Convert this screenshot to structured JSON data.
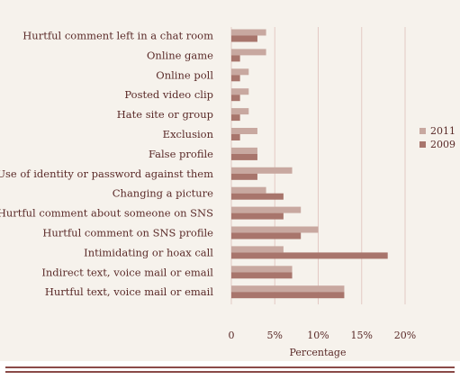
{
  "colors": {
    "series_2011": "#c8a8a0",
    "series_2009": "#a8756c",
    "grid": "#e3c9c4",
    "text": "#5a2a28",
    "panel": "#f6f2ec",
    "rule": "#8a4a48"
  },
  "chart_data": {
    "type": "bar",
    "orientation": "horizontal",
    "title": "",
    "xlabel": "Percentage",
    "ylabel": "",
    "xlim": [
      0,
      20
    ],
    "xticks": [
      0,
      5,
      10,
      15,
      20
    ],
    "xtick_labels": [
      "0",
      "5%",
      "10%",
      "15%",
      "20%"
    ],
    "grid": "vertical",
    "legend_position": "right",
    "categories": [
      "Hurtful comment left in a chat room",
      "Online game",
      "Online poll",
      "Posted video clip",
      "Hate site or group",
      "Exclusion",
      "False profile",
      "Use of identity or password against them",
      "Changing a picture",
      "Hurtful comment about someone on SNS",
      "Hurtful comment on SNS profile",
      "Intimidating or hoax call",
      "Indirect text, voice mail or email",
      "Hurtful text, voice mail or email"
    ],
    "series": [
      {
        "name": "2011",
        "values": [
          4,
          4,
          2,
          2,
          2,
          3,
          3,
          7,
          4,
          8,
          10,
          6,
          7,
          13
        ]
      },
      {
        "name": "2009",
        "values": [
          3,
          1,
          1,
          1,
          1,
          1,
          3,
          3,
          6,
          6,
          8,
          18,
          7,
          13
        ]
      }
    ]
  }
}
